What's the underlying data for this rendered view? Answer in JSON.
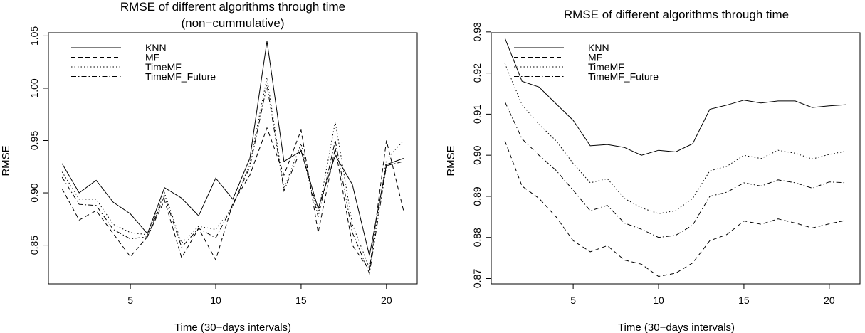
{
  "chart_data": [
    {
      "type": "line",
      "title": "RMSE of different algorithms through time",
      "subtitle": "(non−cummulative)",
      "xlabel": "Time (30−days intervals)",
      "ylabel": "RMSE",
      "xlim": [
        0.2,
        21.8
      ],
      "ylim": [
        0.813,
        1.053
      ],
      "x_ticks": [
        5,
        10,
        15,
        20
      ],
      "y_ticks": [
        0.85,
        0.9,
        0.95,
        1.0,
        1.05
      ],
      "y_tick_labels": [
        "0.85",
        "0.90",
        "0.95",
        "1.00",
        "1.05"
      ],
      "grid": false,
      "legend_position": "top-left",
      "x": [
        1,
        2,
        3,
        4,
        5,
        6,
        7,
        8,
        9,
        10,
        11,
        12,
        13,
        14,
        15,
        16,
        17,
        18,
        19,
        20,
        21
      ],
      "series": [
        {
          "name": "KNN",
          "dash": "solid",
          "values": [
            0.928,
            0.9,
            0.912,
            0.891,
            0.88,
            0.861,
            0.905,
            0.895,
            0.878,
            0.914,
            0.894,
            0.933,
            1.045,
            0.93,
            0.94,
            0.885,
            0.936,
            0.908,
            0.84,
            0.927,
            0.933
          ]
        },
        {
          "name": "MF",
          "dash": "dashed",
          "values": [
            0.904,
            0.874,
            0.883,
            0.861,
            0.839,
            0.858,
            0.893,
            0.838,
            0.866,
            0.836,
            0.89,
            0.917,
            0.962,
            0.917,
            0.96,
            0.862,
            0.943,
            0.85,
            0.826,
            0.95,
            0.883
          ]
        },
        {
          "name": "TimeMF",
          "dash": "dotted",
          "values": [
            0.92,
            0.894,
            0.894,
            0.87,
            0.862,
            0.86,
            0.9,
            0.852,
            0.868,
            0.865,
            0.887,
            0.928,
            1.01,
            0.904,
            0.947,
            0.88,
            0.968,
            0.87,
            0.828,
            0.932,
            0.95
          ]
        },
        {
          "name": "TimeMF_Future",
          "dash": "dashdot",
          "values": [
            0.915,
            0.889,
            0.888,
            0.865,
            0.856,
            0.858,
            0.897,
            0.848,
            0.866,
            0.857,
            0.888,
            0.925,
            1.003,
            0.902,
            0.942,
            0.877,
            0.95,
            0.862,
            0.823,
            0.926,
            0.93
          ]
        }
      ]
    },
    {
      "type": "line",
      "title": "RMSE of different algorithms through time",
      "subtitle": "",
      "xlabel": "Time (30−days intervals)",
      "ylabel": "RMSE",
      "xlim": [
        0.2,
        21.8
      ],
      "ylim": [
        0.8687,
        0.9298
      ],
      "x_ticks": [
        5,
        10,
        15,
        20
      ],
      "y_ticks": [
        0.87,
        0.88,
        0.89,
        0.9,
        0.91,
        0.92,
        0.93
      ],
      "y_tick_labels": [
        "0.87",
        "0.88",
        "0.89",
        "0.90",
        "0.91",
        "0.92",
        "0.93"
      ],
      "grid": false,
      "legend_position": "top-left",
      "x": [
        1,
        2,
        3,
        4,
        5,
        6,
        7,
        8,
        9,
        10,
        11,
        12,
        13,
        14,
        15,
        16,
        17,
        18,
        19,
        20,
        21
      ],
      "series": [
        {
          "name": "KNN",
          "dash": "solid",
          "values": [
            0.9285,
            0.918,
            0.9166,
            0.9125,
            0.9085,
            0.9023,
            0.9026,
            0.9019,
            0.9,
            0.9012,
            0.9008,
            0.9028,
            0.9112,
            0.9122,
            0.9134,
            0.9127,
            0.9132,
            0.9132,
            0.9116,
            0.912,
            0.9123
          ]
        },
        {
          "name": "MF",
          "dash": "dashed",
          "values": [
            0.9035,
            0.8925,
            0.8895,
            0.885,
            0.8792,
            0.8765,
            0.878,
            0.8745,
            0.8735,
            0.8705,
            0.8713,
            0.8738,
            0.8792,
            0.8807,
            0.884,
            0.8832,
            0.8845,
            0.8835,
            0.8823,
            0.8833,
            0.8842
          ]
        },
        {
          "name": "TimeMF",
          "dash": "dotted",
          "values": [
            0.9223,
            0.9123,
            0.9075,
            0.9035,
            0.898,
            0.8933,
            0.8943,
            0.8895,
            0.8872,
            0.8858,
            0.8865,
            0.8895,
            0.8962,
            0.8973,
            0.9,
            0.8992,
            0.9012,
            0.9005,
            0.8991,
            0.9002,
            0.901
          ]
        },
        {
          "name": "TimeMF_Future",
          "dash": "dashdot",
          "values": [
            0.913,
            0.904,
            0.9,
            0.8963,
            0.8915,
            0.8865,
            0.8878,
            0.8835,
            0.882,
            0.88,
            0.8805,
            0.883,
            0.89,
            0.891,
            0.8933,
            0.8925,
            0.894,
            0.8933,
            0.892,
            0.8935,
            0.8933
          ]
        }
      ]
    }
  ]
}
